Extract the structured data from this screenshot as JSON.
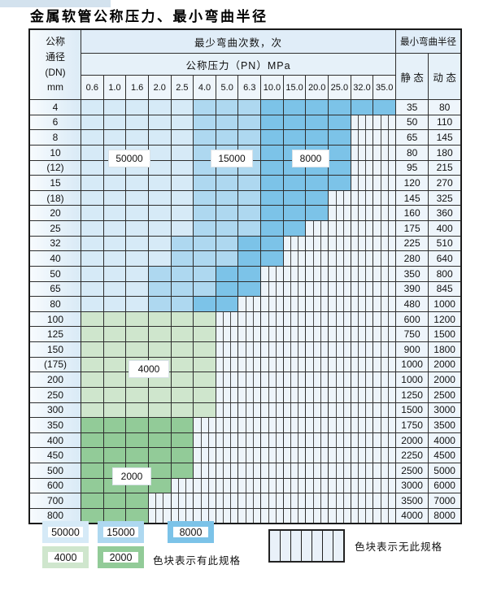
{
  "page": {
    "title": "金属软管公称压力、最小弯曲半径"
  },
  "table": {
    "corner_header_lines": [
      "公称",
      "通径",
      "(DN)",
      "mm"
    ],
    "cycles_header": "最少弯曲次数，次",
    "pressure_header": "公称压力（PN）MPa",
    "radius_header": "最小弯曲半径",
    "static_header": "静 态",
    "dynamic_header": "动 态",
    "pressure_columns": [
      "0.6",
      "1.0",
      "1.6",
      "2.0",
      "2.5",
      "4.0",
      "5.0",
      "6.3",
      "10.0",
      "15.0",
      "20.0",
      "25.0",
      "32.0",
      "35.0"
    ],
    "rows": [
      {
        "dn": "4",
        "bands": [
          [
            "50000",
            5
          ],
          [
            "15000",
            3
          ],
          [
            "8000",
            6
          ]
        ],
        "static": "35",
        "dynamic": "80"
      },
      {
        "dn": "6",
        "bands": [
          [
            "50000",
            5
          ],
          [
            "15000",
            3
          ],
          [
            "8000",
            4
          ]
        ],
        "static": "50",
        "dynamic": "110"
      },
      {
        "dn": "8",
        "bands": [
          [
            "50000",
            5
          ],
          [
            "15000",
            3
          ],
          [
            "8000",
            4
          ]
        ],
        "static": "65",
        "dynamic": "145"
      },
      {
        "dn": "10",
        "bands": [
          [
            "50000",
            5
          ],
          [
            "15000",
            3
          ],
          [
            "8000",
            4
          ]
        ],
        "static": "80",
        "dynamic": "180"
      },
      {
        "dn": "(12)",
        "bands": [
          [
            "50000",
            5
          ],
          [
            "15000",
            3
          ],
          [
            "8000",
            4
          ]
        ],
        "static": "95",
        "dynamic": "215"
      },
      {
        "dn": "15",
        "bands": [
          [
            "50000",
            5
          ],
          [
            "15000",
            3
          ],
          [
            "8000",
            4
          ]
        ],
        "static": "120",
        "dynamic": "270"
      },
      {
        "dn": "(18)",
        "bands": [
          [
            "50000",
            5
          ],
          [
            "15000",
            3
          ],
          [
            "8000",
            3
          ]
        ],
        "static": "145",
        "dynamic": "325"
      },
      {
        "dn": "20",
        "bands": [
          [
            "50000",
            5
          ],
          [
            "15000",
            3
          ],
          [
            "8000",
            3
          ]
        ],
        "static": "160",
        "dynamic": "360"
      },
      {
        "dn": "25",
        "bands": [
          [
            "50000",
            5
          ],
          [
            "15000",
            3
          ],
          [
            "8000",
            2
          ]
        ],
        "static": "175",
        "dynamic": "400"
      },
      {
        "dn": "32",
        "bands": [
          [
            "50000",
            4
          ],
          [
            "15000",
            3
          ],
          [
            "8000",
            2
          ]
        ],
        "static": "225",
        "dynamic": "510"
      },
      {
        "dn": "40",
        "bands": [
          [
            "50000",
            4
          ],
          [
            "15000",
            3
          ],
          [
            "8000",
            2
          ]
        ],
        "static": "280",
        "dynamic": "640"
      },
      {
        "dn": "50",
        "bands": [
          [
            "50000",
            3
          ],
          [
            "15000",
            3
          ],
          [
            "8000",
            2
          ]
        ],
        "static": "350",
        "dynamic": "800"
      },
      {
        "dn": "65",
        "bands": [
          [
            "50000",
            3
          ],
          [
            "15000",
            3
          ],
          [
            "8000",
            2
          ]
        ],
        "static": "390",
        "dynamic": "845"
      },
      {
        "dn": "80",
        "bands": [
          [
            "50000",
            3
          ],
          [
            "15000",
            2
          ],
          [
            "8000",
            2
          ]
        ],
        "static": "480",
        "dynamic": "1000"
      },
      {
        "dn": "100",
        "bands": [
          [
            "4000",
            6
          ]
        ],
        "static": "600",
        "dynamic": "1200"
      },
      {
        "dn": "125",
        "bands": [
          [
            "4000",
            6
          ]
        ],
        "static": "750",
        "dynamic": "1500"
      },
      {
        "dn": "150",
        "bands": [
          [
            "4000",
            6
          ]
        ],
        "static": "900",
        "dynamic": "1800"
      },
      {
        "dn": "(175)",
        "bands": [
          [
            "4000",
            6
          ]
        ],
        "static": "1000",
        "dynamic": "2000"
      },
      {
        "dn": "200",
        "bands": [
          [
            "4000",
            6
          ]
        ],
        "static": "1000",
        "dynamic": "2000"
      },
      {
        "dn": "250",
        "bands": [
          [
            "4000",
            6
          ]
        ],
        "static": "1250",
        "dynamic": "2500"
      },
      {
        "dn": "300",
        "bands": [
          [
            "4000",
            6
          ]
        ],
        "static": "1500",
        "dynamic": "3000"
      },
      {
        "dn": "350",
        "bands": [
          [
            "2000",
            5
          ]
        ],
        "static": "1750",
        "dynamic": "3500"
      },
      {
        "dn": "400",
        "bands": [
          [
            "2000",
            5
          ]
        ],
        "static": "2000",
        "dynamic": "4000"
      },
      {
        "dn": "450",
        "bands": [
          [
            "2000",
            5
          ]
        ],
        "static": "2250",
        "dynamic": "4500"
      },
      {
        "dn": "500",
        "bands": [
          [
            "2000",
            5
          ]
        ],
        "static": "2500",
        "dynamic": "5000"
      },
      {
        "dn": "600",
        "bands": [
          [
            "2000",
            4
          ]
        ],
        "static": "3000",
        "dynamic": "6000"
      },
      {
        "dn": "700",
        "bands": [
          [
            "2000",
            3
          ]
        ],
        "static": "3500",
        "dynamic": "7000"
      },
      {
        "dn": "800",
        "bands": [
          [
            "2000",
            3
          ]
        ],
        "static": "4000",
        "dynamic": "8000"
      }
    ],
    "region_labels": {
      "b50000": "50000",
      "b15000": "15000",
      "b8000": "8000",
      "g4000": "4000",
      "g2000": "2000"
    }
  },
  "colors": {
    "c50000": "#d6eaf7",
    "c15000": "#aed8f0",
    "c8000": "#7cc3e8",
    "c4000": "#cfe6cd",
    "c2000": "#92cb98",
    "no_spec_bg": "#edf4fa"
  },
  "legend": {
    "items": [
      {
        "key": "c50000",
        "label": "50000"
      },
      {
        "key": "c15000",
        "label": "15000"
      },
      {
        "key": "c8000",
        "label": "8000"
      },
      {
        "key": "c4000",
        "label": "4000"
      },
      {
        "key": "c2000",
        "label": "2000"
      }
    ],
    "has_spec_text": "色块表示有此规格",
    "no_spec_text": "色块表示无此规格"
  }
}
